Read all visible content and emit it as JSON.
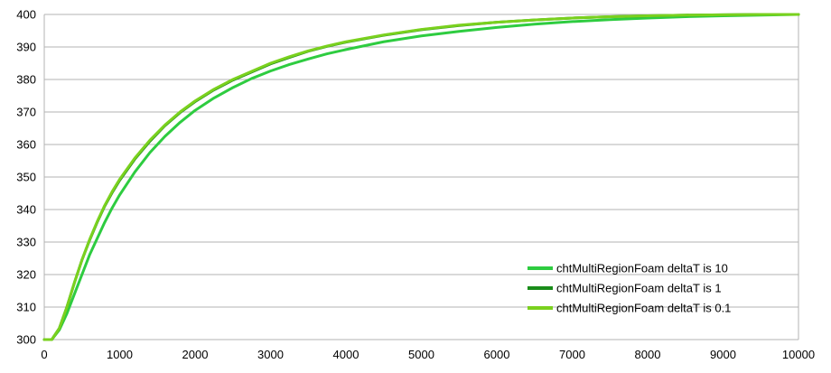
{
  "chart_data": {
    "type": "line",
    "title": "",
    "xlabel": "",
    "ylabel": "",
    "xlim": [
      0,
      10000
    ],
    "ylim": [
      300,
      400
    ],
    "x_ticks": [
      0,
      1000,
      2000,
      3000,
      4000,
      5000,
      6000,
      7000,
      8000,
      9000,
      10000
    ],
    "y_ticks": [
      300,
      310,
      320,
      330,
      340,
      350,
      360,
      370,
      380,
      390,
      400
    ],
    "grid": {
      "horizontal": true,
      "vertical": false
    },
    "legend_placement": "bottom-right",
    "x": [
      0,
      100,
      200,
      300,
      400,
      500,
      600,
      700,
      800,
      900,
      1000,
      1200,
      1400,
      1600,
      1800,
      2000,
      2250,
      2500,
      2750,
      3000,
      3250,
      3500,
      3750,
      4000,
      4500,
      5000,
      5500,
      6000,
      6500,
      7000,
      7500,
      8000,
      8500,
      9000,
      9500,
      10000
    ],
    "series": [
      {
        "name": "chtMultiRegionFoam deltaT is 10",
        "color": "#2ecc40",
        "values": [
          300.0,
          300.0,
          303.0,
          308.0,
          314.0,
          320.0,
          326.0,
          331.0,
          336.0,
          340.5,
          344.5,
          351.5,
          357.5,
          362.5,
          366.8,
          370.5,
          374.3,
          377.5,
          380.3,
          382.6,
          384.6,
          386.3,
          387.9,
          389.2,
          391.6,
          393.4,
          394.8,
          396.0,
          397.0,
          397.8,
          398.4,
          398.9,
          399.3,
          399.6,
          399.8,
          400.0
        ]
      },
      {
        "name": "chtMultiRegionFoam deltaT is 1",
        "color": "#1a8c1a",
        "values": [
          300.0,
          300.0,
          303.5,
          310.0,
          317.5,
          324.5,
          330.5,
          336.0,
          341.0,
          345.2,
          349.0,
          355.5,
          361.0,
          365.8,
          369.8,
          373.2,
          376.8,
          379.8,
          382.3,
          384.8,
          386.8,
          388.7,
          390.2,
          391.5,
          393.6,
          395.3,
          396.6,
          397.6,
          398.3,
          398.9,
          399.3,
          399.6,
          399.8,
          399.9,
          400.0,
          400.0
        ]
      },
      {
        "name": "chtMultiRegionFoam deltaT is 0.1",
        "color": "#7ad11e",
        "values": [
          300.0,
          300.0,
          303.5,
          310.0,
          317.5,
          324.5,
          330.7,
          336.2,
          341.2,
          345.5,
          349.3,
          355.8,
          361.3,
          366.0,
          370.0,
          373.4,
          377.0,
          380.0,
          382.5,
          385.0,
          387.0,
          388.8,
          390.3,
          391.6,
          393.7,
          395.4,
          396.7,
          397.6,
          398.3,
          398.9,
          399.3,
          399.6,
          399.8,
          399.9,
          400.0,
          400.0
        ]
      }
    ]
  }
}
